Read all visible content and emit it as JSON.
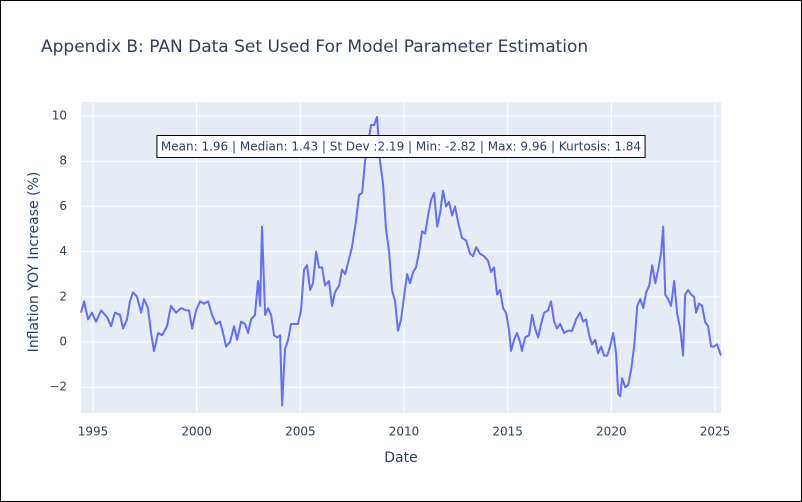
{
  "chart_data": {
    "type": "line",
    "title": "Appendix B: PAN Data Set Used For Model Parameter Estimation",
    "xlabel": "Date",
    "ylabel": "Inflation YOY Increase (%)",
    "annotation": "Mean: 1.96 | Median: 1.43 | St Dev :2.19 | Min: -2.82 | Max: 9.96 | Kurtosis: 1.84",
    "color": "#636efa",
    "grid": true,
    "xlim": [
      1994.42,
      2025.29
    ],
    "xticks": [
      1995,
      2000,
      2005,
      2010,
      2015,
      2020,
      2025
    ],
    "ylim": [
      -3.14,
      10.62
    ],
    "yticks": [
      {
        "value": -2,
        "label": "−2"
      },
      0,
      2,
      4,
      6,
      8,
      10
    ],
    "x": [
      1994.42,
      1994.57,
      1994.76,
      1994.95,
      1995.14,
      1995.39,
      1995.68,
      1995.87,
      1996.06,
      1996.3,
      1996.45,
      1996.64,
      1996.78,
      1996.93,
      1997.12,
      1997.32,
      1997.46,
      1997.65,
      1997.8,
      1997.94,
      1998.14,
      1998.33,
      1998.57,
      1998.76,
      1999.0,
      1999.25,
      1999.49,
      1999.63,
      1999.78,
      1999.97,
      2000.16,
      2000.35,
      2000.55,
      2000.74,
      2000.93,
      2001.13,
      2001.27,
      2001.42,
      2001.61,
      2001.8,
      2001.95,
      2002.14,
      2002.33,
      2002.48,
      2002.62,
      2002.81,
      2002.96,
      2003.06,
      2003.15,
      2003.3,
      2003.44,
      2003.59,
      2003.73,
      2003.88,
      2004.02,
      2004.12,
      2004.26,
      2004.41,
      2004.55,
      2004.74,
      2004.89,
      2005.03,
      2005.18,
      2005.32,
      2005.47,
      2005.61,
      2005.76,
      2005.9,
      2006.05,
      2006.19,
      2006.38,
      2006.53,
      2006.67,
      2006.87,
      2007.01,
      2007.16,
      2007.3,
      2007.49,
      2007.69,
      2007.83,
      2007.98,
      2008.12,
      2008.27,
      2008.41,
      2008.56,
      2008.7,
      2008.84,
      2008.99,
      2009.13,
      2009.28,
      2009.42,
      2009.57,
      2009.71,
      2009.86,
      2010.0,
      2010.15,
      2010.29,
      2010.44,
      2010.58,
      2010.73,
      2010.87,
      2011.02,
      2011.16,
      2011.31,
      2011.45,
      2011.6,
      2011.74,
      2011.88,
      2012.03,
      2012.17,
      2012.32,
      2012.46,
      2012.61,
      2012.8,
      2012.99,
      2013.19,
      2013.33,
      2013.48,
      2013.67,
      2013.86,
      2014.05,
      2014.2,
      2014.34,
      2014.49,
      2014.63,
      2014.78,
      2014.92,
      2015.07,
      2015.16,
      2015.31,
      2015.45,
      2015.6,
      2015.69,
      2015.84,
      2016.03,
      2016.18,
      2016.32,
      2016.47,
      2016.61,
      2016.76,
      2016.95,
      2017.09,
      2017.24,
      2017.38,
      2017.53,
      2017.72,
      2017.91,
      2018.11,
      2018.3,
      2018.49,
      2018.64,
      2018.78,
      2018.93,
      2019.07,
      2019.22,
      2019.36,
      2019.51,
      2019.65,
      2019.8,
      2019.94,
      2020.09,
      2020.23,
      2020.33,
      2020.43,
      2020.52,
      2020.67,
      2020.81,
      2020.96,
      2021.1,
      2021.25,
      2021.4,
      2021.54,
      2021.68,
      2021.83,
      2021.97,
      2022.12,
      2022.26,
      2022.41,
      2022.5,
      2022.6,
      2022.74,
      2022.88,
      2023.03,
      2023.17,
      2023.32,
      2023.46,
      2023.56,
      2023.7,
      2023.85,
      2023.99,
      2024.09,
      2024.23,
      2024.38,
      2024.52,
      2024.67,
      2024.81,
      2024.96,
      2025.1,
      2025.29
    ],
    "values": [
      1.3,
      1.8,
      1.0,
      1.3,
      0.9,
      1.4,
      1.1,
      0.7,
      1.3,
      1.2,
      0.6,
      1.0,
      1.8,
      2.2,
      2.0,
      1.3,
      1.9,
      1.5,
      0.4,
      -0.4,
      0.4,
      0.3,
      0.7,
      1.6,
      1.3,
      1.5,
      1.4,
      1.4,
      0.6,
      1.4,
      1.8,
      1.7,
      1.8,
      1.2,
      0.8,
      0.9,
      0.4,
      -0.2,
      0.0,
      0.7,
      0.1,
      0.9,
      0.8,
      0.4,
      1.0,
      1.2,
      2.7,
      1.6,
      5.1,
      1.2,
      1.5,
      1.2,
      0.3,
      0.2,
      0.3,
      -2.8,
      -0.3,
      0.1,
      0.8,
      0.8,
      0.8,
      1.4,
      3.2,
      3.4,
      2.3,
      2.6,
      4.0,
      3.3,
      3.3,
      2.5,
      2.7,
      1.6,
      2.2,
      2.5,
      3.2,
      3.0,
      3.5,
      4.2,
      5.4,
      6.5,
      6.6,
      8.0,
      8.8,
      9.6,
      9.6,
      9.96,
      8.0,
      7.0,
      5.0,
      4.0,
      2.3,
      1.8,
      0.5,
      1.0,
      2.0,
      3.0,
      2.6,
      3.1,
      3.3,
      4.0,
      4.9,
      4.8,
      5.6,
      6.3,
      6.6,
      5.1,
      5.7,
      6.7,
      6.0,
      6.2,
      5.6,
      6.0,
      5.3,
      4.6,
      4.5,
      3.9,
      3.8,
      4.2,
      3.9,
      3.8,
      3.6,
      3.1,
      3.3,
      2.1,
      2.3,
      1.5,
      1.3,
      0.5,
      -0.4,
      0.1,
      0.4,
      0.0,
      -0.4,
      0.2,
      0.3,
      1.2,
      0.6,
      0.2,
      0.8,
      1.3,
      1.4,
      1.8,
      0.9,
      0.6,
      0.8,
      0.4,
      0.5,
      0.5,
      1.0,
      1.3,
      0.9,
      1.0,
      0.3,
      -0.1,
      0.1,
      -0.5,
      -0.2,
      -0.6,
      -0.6,
      -0.2,
      0.4,
      -0.5,
      -2.3,
      -2.4,
      -1.6,
      -2.0,
      -1.9,
      -1.2,
      -0.2,
      1.6,
      1.9,
      1.5,
      2.2,
      2.5,
      3.4,
      2.6,
      3.2,
      4.0,
      5.1,
      2.1,
      1.9,
      1.6,
      2.7,
      1.3,
      0.6,
      -0.6,
      2.1,
      2.3,
      2.1,
      2.0,
      1.3,
      1.7,
      1.6,
      0.9,
      0.7,
      -0.2,
      -0.2,
      -0.1,
      -0.6
    ]
  }
}
